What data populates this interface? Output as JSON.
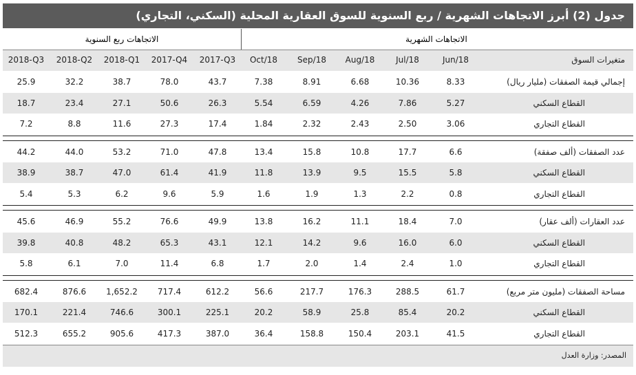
{
  "title": "جدول (2) أبرز الاتجاهات الشهرية / ربع السنوية للسوق العقارية المحلية (السكني، التجاري)",
  "sections": {
    "monthly": "الاتجاهات الشهرية",
    "quarterly": "الاتجاهات ربع السنوية"
  },
  "header_label": "متغيرات السوق",
  "columns": [
    "Jun/18",
    "Jul/18",
    "Aug/18",
    "Sep/18",
    "Oct/18",
    "2017-Q3",
    "2017-Q4",
    "2018-Q1",
    "2018-Q2",
    "2018-Q3"
  ],
  "groups": [
    {
      "rows": [
        {
          "label": "إجمالي قيمة الصفقات (مليار ريال)",
          "values": [
            "8.33",
            "10.36",
            "6.68",
            "8.91",
            "7.38",
            "43.7",
            "78.0",
            "38.7",
            "32.2",
            "25.9"
          ]
        },
        {
          "label": "القطاع السكني",
          "values": [
            "5.27",
            "7.86",
            "4.26",
            "6.59",
            "5.54",
            "26.3",
            "50.6",
            "27.1",
            "23.4",
            "18.7"
          ]
        },
        {
          "label": "القطاع التجاري",
          "values": [
            "3.06",
            "2.50",
            "2.43",
            "2.32",
            "1.84",
            "17.4",
            "27.3",
            "11.6",
            "8.8",
            "7.2"
          ]
        }
      ]
    },
    {
      "rows": [
        {
          "label": "عدد الصفقات (ألف صفقة)",
          "values": [
            "6.6",
            "17.7",
            "10.8",
            "15.8",
            "13.4",
            "47.8",
            "71.0",
            "53.2",
            "44.0",
            "44.2"
          ]
        },
        {
          "label": "القطاع السكني",
          "values": [
            "5.8",
            "15.5",
            "9.5",
            "13.9",
            "11.8",
            "41.9",
            "61.4",
            "47.0",
            "38.7",
            "38.9"
          ]
        },
        {
          "label": "القطاع التجاري",
          "values": [
            "0.8",
            "2.2",
            "1.3",
            "1.9",
            "1.6",
            "5.9",
            "9.6",
            "6.2",
            "5.3",
            "5.4"
          ]
        }
      ]
    },
    {
      "rows": [
        {
          "label": "عدد العقارات (ألف عقار)",
          "values": [
            "7.0",
            "18.4",
            "11.1",
            "16.2",
            "13.8",
            "49.9",
            "76.6",
            "55.2",
            "46.9",
            "45.6"
          ]
        },
        {
          "label": "القطاع السكني",
          "values": [
            "6.0",
            "16.0",
            "9.6",
            "14.2",
            "12.1",
            "43.1",
            "65.3",
            "48.2",
            "40.8",
            "39.8"
          ]
        },
        {
          "label": "القطاع التجاري",
          "values": [
            "1.0",
            "2.4",
            "1.4",
            "2.0",
            "1.7",
            "6.8",
            "11.4",
            "7.0",
            "6.1",
            "5.8"
          ]
        }
      ]
    },
    {
      "rows": [
        {
          "label": "مساحة الصفقات (مليون متر مربع)",
          "values": [
            "61.7",
            "288.5",
            "176.3",
            "217.7",
            "56.6",
            "612.2",
            "717.4",
            "1,652.2",
            "876.6",
            "682.4"
          ]
        },
        {
          "label": "القطاع السكني",
          "values": [
            "20.2",
            "85.4",
            "25.8",
            "58.9",
            "20.2",
            "225.1",
            "300.1",
            "746.6",
            "221.4",
            "170.1"
          ]
        },
        {
          "label": "القطاع التجاري",
          "values": [
            "41.5",
            "203.1",
            "150.4",
            "158.8",
            "36.4",
            "387.0",
            "417.3",
            "905.6",
            "655.2",
            "512.3"
          ]
        }
      ]
    }
  ],
  "source": "المصدر: وزارة العدل"
}
